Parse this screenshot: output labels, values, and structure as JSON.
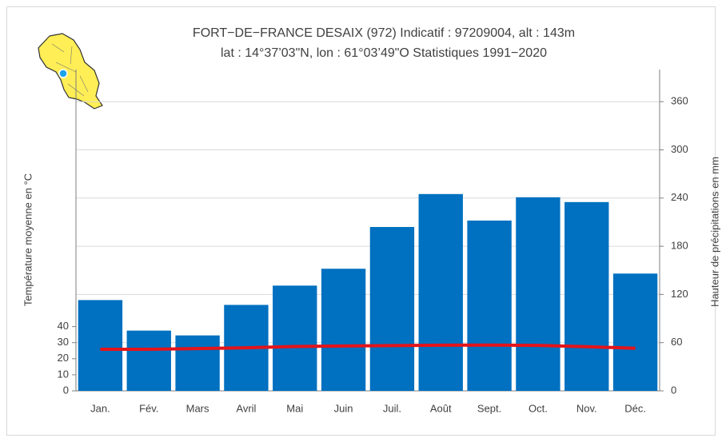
{
  "chart_data": {
    "type": "bar",
    "title": "FORT−DE−FRANCE DESAIX (972) Indicatif : 97209004, alt : 143m",
    "subtitle": "lat : 14°37’03\"N, lon : 61°03’49\"O Statistiques 1991−2020",
    "ylabel": "Température moyenne en °C",
    "y2label": "Hauteur de précipitations en mm",
    "categories": [
      "Jan.",
      "Fév.",
      "Mars",
      "Avril",
      "Mai",
      "Juin",
      "Juil.",
      "Août",
      "Sept.",
      "Oct.",
      "Nov.",
      "Déc."
    ],
    "series": [
      {
        "name": "Température moyenne",
        "type": "line",
        "axis": "y",
        "color": "#e3141b",
        "values": [
          25.9,
          25.9,
          26.3,
          26.8,
          27.6,
          27.9,
          28.2,
          28.4,
          28.5,
          28.3,
          27.5,
          26.5
        ]
      },
      {
        "name": "Hauteur de précipitations",
        "type": "bar",
        "axis": "y2",
        "color": "#0070c0",
        "values": [
          113,
          75,
          69,
          107,
          131,
          152,
          204,
          245,
          212,
          241,
          235,
          146
        ]
      }
    ],
    "ylim": [
      0,
      200
    ],
    "yticks": [
      0,
      10,
      20,
      30,
      40
    ],
    "y2lim": [
      0,
      400
    ],
    "y2ticks": [
      0,
      60,
      120,
      180,
      240,
      300,
      360
    ],
    "grid": true
  }
}
